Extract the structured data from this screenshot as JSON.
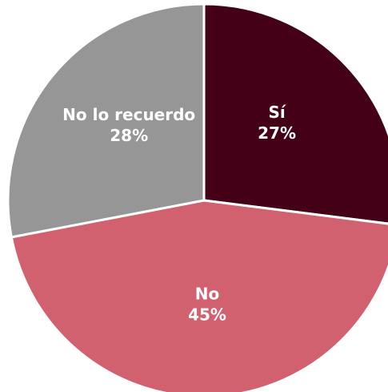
{
  "chart_data": {
    "type": "pie",
    "title": "",
    "start_angle_deg": 0,
    "direction": "clockwise",
    "slices": [
      {
        "label": "Sí",
        "value": 27,
        "value_label": "27%",
        "color": "#430016"
      },
      {
        "label": "No",
        "value": 45,
        "value_label": "45%",
        "color": "#d2616f"
      },
      {
        "label": "No lo recuerdo",
        "value": 28,
        "value_label": "28%",
        "color": "#969696"
      }
    ],
    "legend": "none",
    "labels_inside": true
  }
}
